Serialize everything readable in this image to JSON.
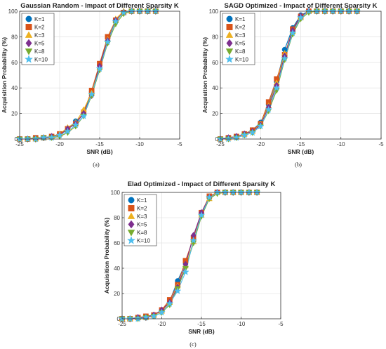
{
  "figure": {
    "series_labels": [
      "K=1",
      "K=2",
      "K=3",
      "K=5",
      "K=8",
      "K=10"
    ],
    "series_colors": [
      "#0072BD",
      "#D95319",
      "#EDB120",
      "#7E2F8E",
      "#77AC30",
      "#4DBEEE"
    ],
    "series_markers": [
      "circle",
      "square",
      "triangle-up",
      "diamond",
      "triangle-down",
      "star"
    ]
  },
  "chart_data": [
    {
      "type": "line",
      "title": "Gaussian Random - Impact of Different Sparsity K",
      "xlabel": "SNR (dB)",
      "ylabel": "Acquisition Probability (%)",
      "caption": "(a)",
      "xlim": [
        -25,
        -5
      ],
      "ylim": [
        0,
        100
      ],
      "xticks": [
        -25,
        -20,
        -15,
        -10,
        -5
      ],
      "yticks": [
        0,
        20,
        40,
        60,
        80,
        100
      ],
      "grid": true,
      "legend_position": "top-left",
      "x": [
        -25,
        -24,
        -23,
        -22,
        -21,
        -20,
        -19,
        -18,
        -17,
        -16,
        -15,
        -14,
        -13,
        -12,
        -11,
        -10,
        -9,
        -8
      ],
      "series": [
        {
          "name": "K=1",
          "values": [
            0,
            0,
            1,
            1,
            2,
            4,
            7,
            14,
            19,
            37,
            58,
            79,
            92,
            99,
            100,
            100,
            100,
            100
          ]
        },
        {
          "name": "K=2",
          "values": [
            0,
            0,
            1,
            1,
            2,
            4,
            8,
            12,
            21,
            38,
            59,
            80,
            93,
            99,
            100,
            100,
            100,
            100
          ]
        },
        {
          "name": "K=3",
          "values": [
            0,
            0,
            0,
            1,
            2,
            4,
            9,
            13,
            23,
            36,
            56,
            78,
            94,
            100,
            100,
            100,
            100,
            100
          ]
        },
        {
          "name": "K=5",
          "values": [
            0,
            0,
            0,
            1,
            2,
            3,
            8,
            12,
            20,
            34,
            57,
            77,
            93,
            99,
            100,
            100,
            100,
            100
          ]
        },
        {
          "name": "K=8",
          "values": [
            0,
            0,
            0,
            1,
            1,
            2,
            5,
            10,
            18,
            34,
            54,
            75,
            90,
            98,
            100,
            100,
            100,
            100
          ]
        },
        {
          "name": "K=10",
          "values": [
            0,
            0,
            0,
            1,
            1,
            3,
            6,
            11,
            18,
            35,
            55,
            76,
            92,
            99,
            100,
            100,
            100,
            100
          ]
        }
      ]
    },
    {
      "type": "line",
      "title": "SAGD Optimized - Impact of Different Sparsity K",
      "xlabel": "SNR (dB)",
      "ylabel": "Acquisition Probability (%)",
      "caption": "(b)",
      "xlim": [
        -25,
        -5
      ],
      "ylim": [
        0,
        100
      ],
      "xticks": [
        -25,
        -20,
        -15,
        -10,
        -5
      ],
      "yticks": [
        0,
        20,
        40,
        60,
        80,
        100
      ],
      "grid": true,
      "legend_position": "top-left",
      "x": [
        -25,
        -24,
        -23,
        -22,
        -21,
        -20,
        -19,
        -18,
        -17,
        -16,
        -15,
        -14,
        -13,
        -12,
        -11,
        -10,
        -9,
        -8
      ],
      "series": [
        {
          "name": "K=1",
          "values": [
            0,
            1,
            2,
            4,
            7,
            13,
            27,
            45,
            70,
            87,
            97,
            100,
            100,
            100,
            100,
            100,
            100,
            100
          ]
        },
        {
          "name": "K=2",
          "values": [
            0,
            1,
            2,
            4,
            7,
            12,
            29,
            47,
            66,
            86,
            96,
            100,
            100,
            100,
            100,
            100,
            100,
            100
          ]
        },
        {
          "name": "K=3",
          "values": [
            0,
            1,
            2,
            4,
            6,
            12,
            26,
            44,
            67,
            84,
            95,
            100,
            100,
            100,
            100,
            100,
            100,
            100
          ]
        },
        {
          "name": "K=5",
          "values": [
            0,
            1,
            2,
            4,
            6,
            11,
            25,
            42,
            65,
            85,
            96,
            100,
            100,
            100,
            100,
            100,
            100,
            100
          ]
        },
        {
          "name": "K=8",
          "values": [
            0,
            0,
            1,
            3,
            5,
            10,
            22,
            38,
            62,
            82,
            94,
            99,
            100,
            100,
            100,
            100,
            100,
            100
          ]
        },
        {
          "name": "K=10",
          "values": [
            0,
            0,
            1,
            3,
            5,
            10,
            23,
            40,
            63,
            83,
            95,
            100,
            100,
            100,
            100,
            100,
            100,
            100
          ]
        }
      ]
    },
    {
      "type": "line",
      "title": "Elad Optimized - Impact of Different Sparsity K",
      "xlabel": "SNR (dB)",
      "ylabel": "Acquisition Probability (%)",
      "caption": "(c)",
      "xlim": [
        -25,
        -5
      ],
      "ylim": [
        0,
        100
      ],
      "xticks": [
        -25,
        -20,
        -15,
        -10,
        -5
      ],
      "yticks": [
        0,
        20,
        40,
        60,
        80,
        100
      ],
      "grid": true,
      "legend_position": "top-left",
      "x": [
        -25,
        -24,
        -23,
        -22,
        -21,
        -20,
        -19,
        -18,
        -17,
        -16,
        -15,
        -14,
        -13,
        -12,
        -11,
        -10,
        -9,
        -8
      ],
      "series": [
        {
          "name": "K=1",
          "values": [
            0,
            0,
            1,
            1,
            3,
            6,
            14,
            30,
            44,
            65,
            83,
            96,
            100,
            100,
            100,
            100,
            100,
            100
          ]
        },
        {
          "name": "K=2",
          "values": [
            0,
            0,
            1,
            2,
            3,
            7,
            15,
            27,
            46,
            64,
            84,
            97,
            100,
            100,
            100,
            100,
            100,
            100
          ]
        },
        {
          "name": "K=3",
          "values": [
            0,
            0,
            1,
            1,
            3,
            6,
            13,
            26,
            42,
            61,
            82,
            95,
            100,
            100,
            100,
            100,
            100,
            100
          ]
        },
        {
          "name": "K=5",
          "values": [
            0,
            0,
            1,
            1,
            3,
            7,
            13,
            25,
            43,
            66,
            84,
            96,
            100,
            100,
            100,
            100,
            100,
            100
          ]
        },
        {
          "name": "K=8",
          "values": [
            0,
            0,
            0,
            1,
            2,
            5,
            11,
            24,
            40,
            60,
            81,
            95,
            99,
            100,
            100,
            100,
            100,
            100
          ]
        },
        {
          "name": "K=10",
          "values": [
            0,
            0,
            0,
            1,
            2,
            5,
            12,
            22,
            37,
            62,
            82,
            96,
            100,
            100,
            100,
            100,
            100,
            100
          ]
        }
      ]
    }
  ]
}
